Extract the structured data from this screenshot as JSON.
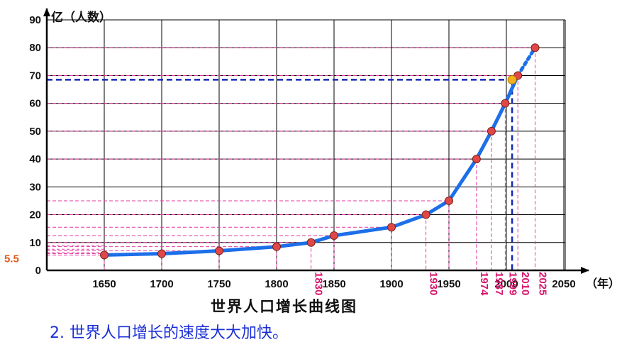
{
  "chart_data": {
    "type": "line",
    "title": "世界人口增长曲线图",
    "ylabel": "亿（人数）",
    "xlabel": "（年）",
    "ylim": [
      0,
      90
    ],
    "y_ticks": [
      "0",
      "10",
      "20",
      "30",
      "40",
      "50",
      "60",
      "70",
      "80",
      "90"
    ],
    "x_ticks": [
      "1650",
      "1700",
      "1750",
      "1800",
      "1850",
      "1900",
      "1950",
      "2000",
      "2050"
    ],
    "highlight_y_label": "5.5",
    "highlight_years": [
      "1830",
      "1930",
      "1974",
      "1987",
      "1999",
      "2010",
      "2025"
    ],
    "series": [
      {
        "values": [
          {
            "x": 1650,
            "y": 5.5
          },
          {
            "x": 1700,
            "y": 6
          },
          {
            "x": 1750,
            "y": 7
          },
          {
            "x": 1800,
            "y": 8.5
          },
          {
            "x": 1830,
            "y": 10
          },
          {
            "x": 1850,
            "y": 12.5
          },
          {
            "x": 1900,
            "y": 15.5
          },
          {
            "x": 1930,
            "y": 20
          },
          {
            "x": 1950,
            "y": 25
          },
          {
            "x": 1974,
            "y": 40
          },
          {
            "x": 1987,
            "y": 50
          },
          {
            "x": 1999,
            "y": 60
          },
          {
            "x": 2010,
            "y": 70
          },
          {
            "x": 2025,
            "y": 80
          }
        ]
      }
    ],
    "projected_from_year": 2010,
    "marker_point": {
      "x": 2005,
      "y": 68.5
    },
    "grid": true,
    "colors": {
      "line": "#1c6fe8",
      "grid": "#000000",
      "guide": "#e23aa0",
      "marker": "#e04848",
      "marker_highlight": "#f2b01e",
      "dashed_guide": "#1327b8",
      "year_tick": "#d6156b",
      "highlight_label": "#e05a1a"
    }
  },
  "caption": "2. 世界人口增长的速度大大加快。"
}
